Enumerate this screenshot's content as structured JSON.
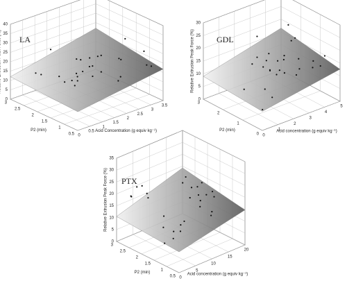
{
  "chart_data": [
    {
      "type": "surface3d",
      "label": "LA",
      "xlabel": "Acid Concentration (g equiv kg⁻¹)",
      "ylabel": "P2 (min)",
      "zlabel": "Relative Extrusion Peak Force (%)",
      "xlim": [
        0,
        3.5
      ],
      "xticks": [
        0,
        0.5,
        1,
        1.5,
        2,
        2.5,
        3,
        3.5
      ],
      "ylim": [
        0.5,
        3
      ],
      "yticks": [
        0.5,
        1,
        1.5,
        2,
        2.5,
        3
      ],
      "zlim": [
        0,
        40
      ],
      "zticks": [
        0,
        5,
        10,
        15,
        20,
        25,
        30,
        35,
        40
      ]
    },
    {
      "type": "surface3d",
      "label": "GDL",
      "xlabel": "Acid concentration (g equiv kg⁻¹)",
      "ylabel": "P2 (min)",
      "zlabel": "Relative Extrusion Peak Force (%)",
      "xlim": [
        0,
        5
      ],
      "xticks": [
        0,
        1,
        2,
        3,
        4,
        5
      ],
      "ylim": [
        0,
        3
      ],
      "yticks": [
        0,
        1,
        2,
        3
      ],
      "zlim": [
        0,
        30
      ],
      "zticks": [
        0,
        5,
        10,
        15,
        20,
        25,
        30
      ]
    },
    {
      "type": "surface3d",
      "label": "PTX",
      "xlabel": "Acid concentration (g equiv kg⁻¹)",
      "ylabel": "P2 (min)",
      "zlabel": "Relative Extrusion Peak Force (%)",
      "xlim": [
        0,
        20
      ],
      "xticks": [
        0,
        5,
        10,
        15,
        20
      ],
      "ylim": [
        0.5,
        3
      ],
      "yticks": [
        0.5,
        1,
        1.5,
        2,
        2.5,
        3
      ],
      "zlim": [
        0,
        35
      ],
      "zticks": [
        0,
        5,
        10,
        15,
        20,
        25,
        30,
        35
      ]
    }
  ]
}
